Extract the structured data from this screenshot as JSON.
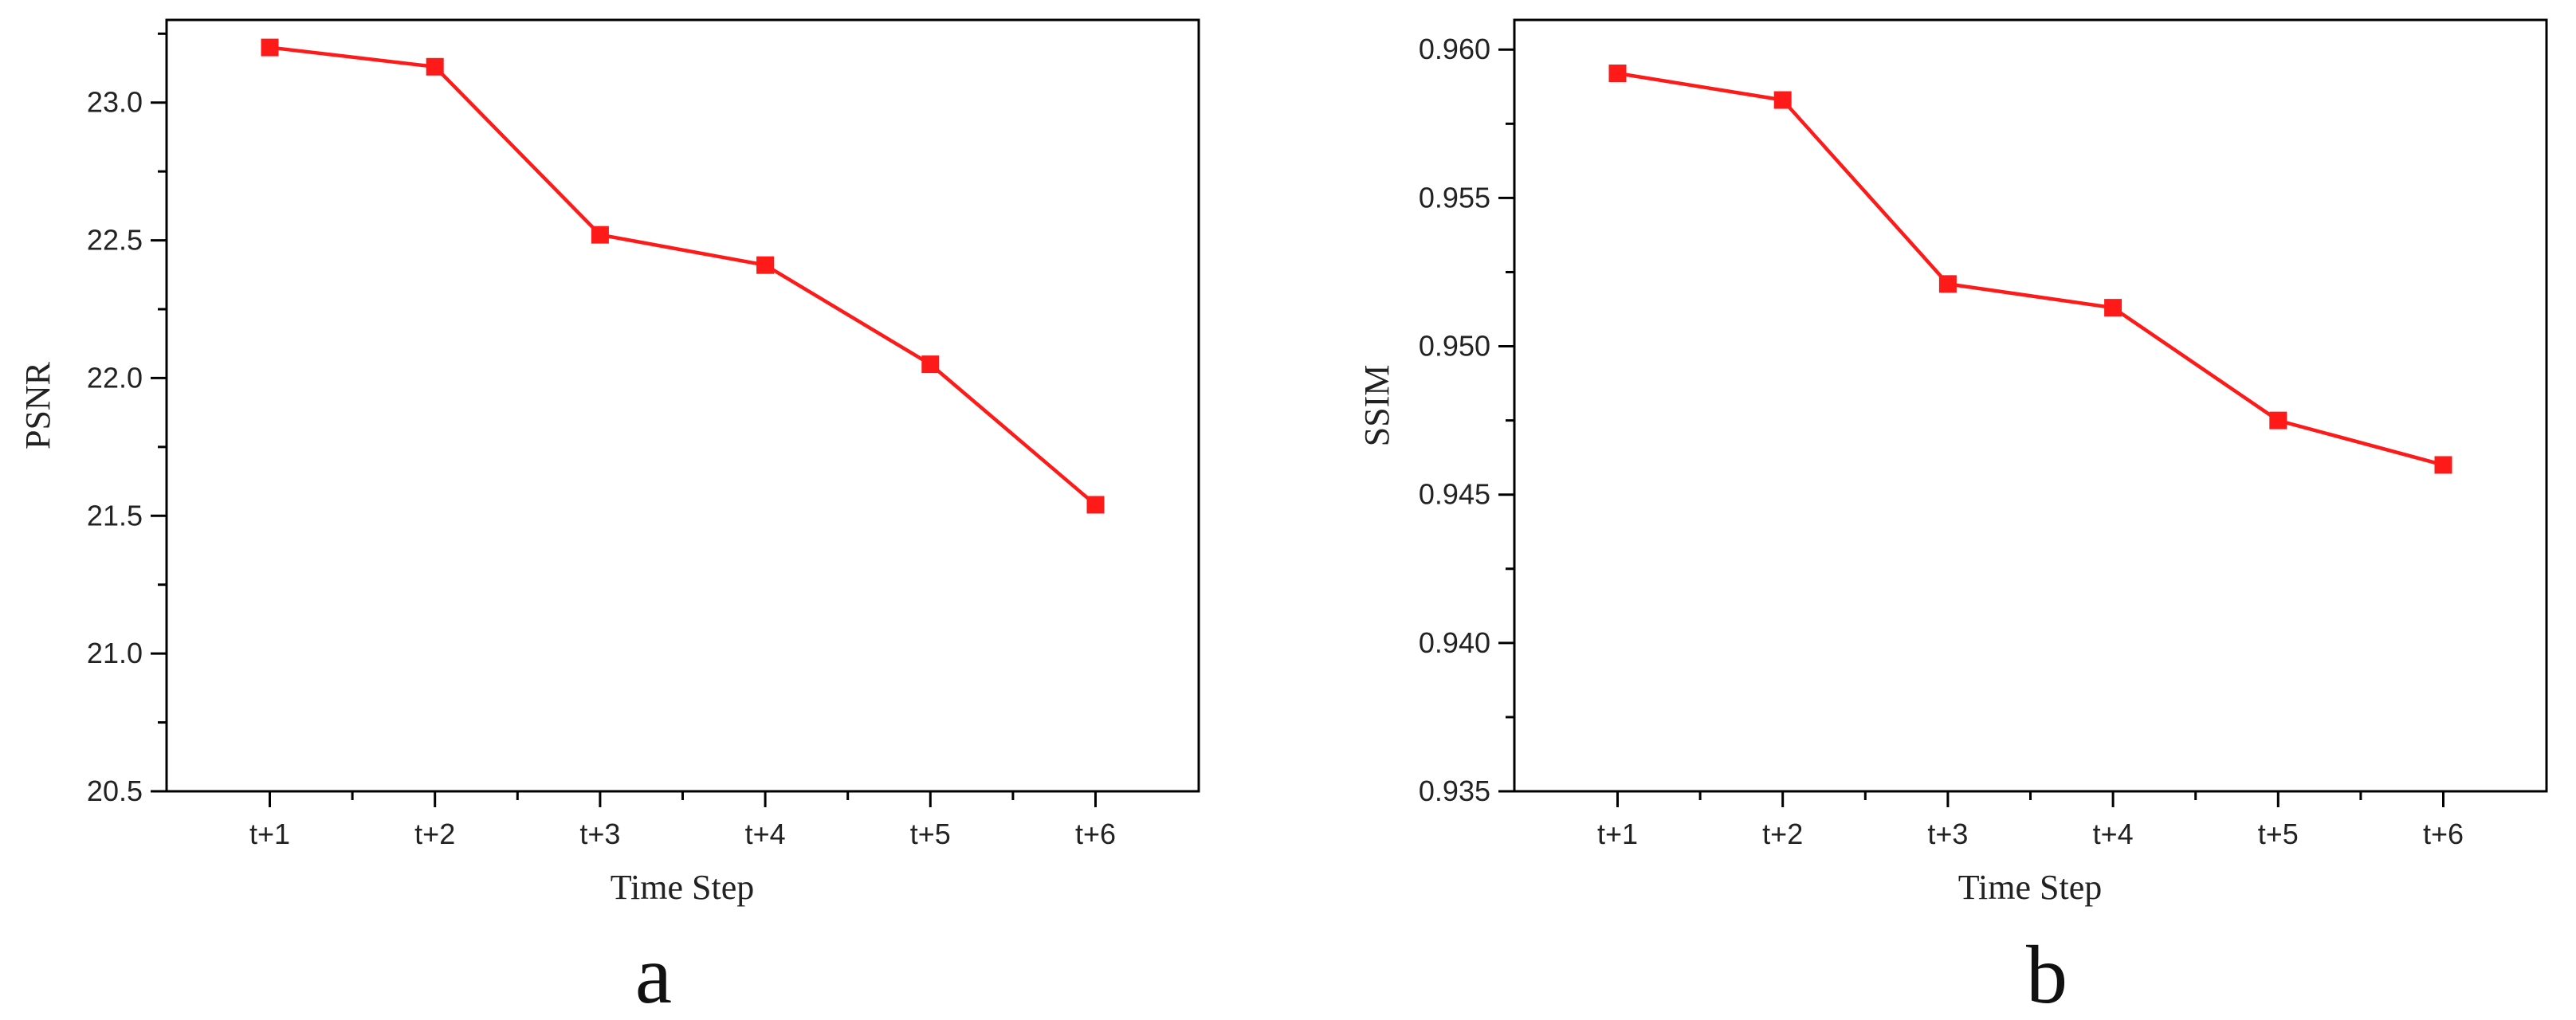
{
  "chart_data": [
    {
      "type": "line",
      "panel_label": "a",
      "categories": [
        "t+1",
        "t+2",
        "t+3",
        "t+4",
        "t+5",
        "t+6"
      ],
      "series": [
        {
          "values": [
            23.2,
            23.13,
            22.52,
            22.41,
            22.05,
            21.54
          ]
        }
      ],
      "xlabel": "Time Step",
      "ylabel": "PSNR",
      "ylim": [
        20.5,
        23.3
      ],
      "yticks": [
        20.5,
        21.0,
        21.5,
        22.0,
        22.5,
        23.0
      ],
      "ytick_labels": [
        "20.5",
        "21.0",
        "21.5",
        "22.0",
        "22.5",
        "23.0"
      ],
      "grid": false,
      "color": "#ff1a1a"
    },
    {
      "type": "line",
      "panel_label": "b",
      "categories": [
        "t+1",
        "t+2",
        "t+3",
        "t+4",
        "t+5",
        "t+6"
      ],
      "series": [
        {
          "values": [
            0.9592,
            0.9583,
            0.9521,
            0.9513,
            0.9475,
            0.946
          ]
        }
      ],
      "xlabel": "Time Step",
      "ylabel": "SSIM",
      "ylim": [
        0.935,
        0.961
      ],
      "yticks": [
        0.935,
        0.94,
        0.945,
        0.95,
        0.955,
        0.96
      ],
      "ytick_labels": [
        "0.935",
        "0.940",
        "0.945",
        "0.950",
        "0.955",
        "0.960"
      ],
      "grid": false,
      "color": "#ff1a1a"
    }
  ]
}
